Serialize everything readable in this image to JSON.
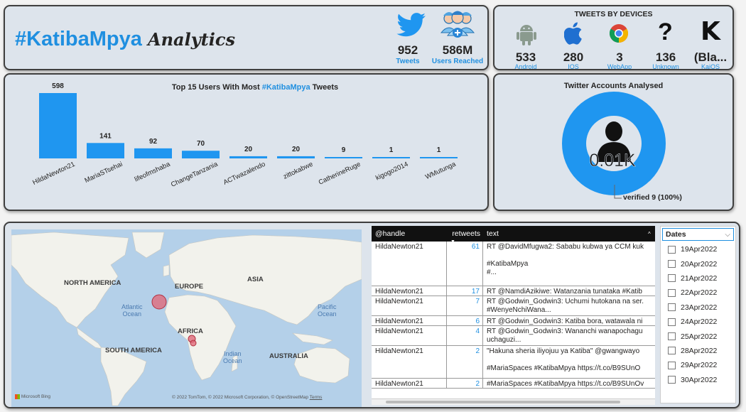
{
  "header": {
    "title_hashtag": "#KatibaMpya",
    "title_word": "Analytics",
    "tweets_value": "952",
    "tweets_label": "Tweets",
    "reached_value": "586M",
    "reached_label": "Users Reached"
  },
  "devices": {
    "title": "TWEETS BY DEVICES",
    "items": [
      {
        "value": "533",
        "label": "Android",
        "icon": "android-icon"
      },
      {
        "value": "280",
        "label": "IOS",
        "icon": "apple-icon"
      },
      {
        "value": "3",
        "label": "WebApp",
        "icon": "chrome-icon"
      },
      {
        "value": "136",
        "label": "Unknown",
        "icon": "question-icon"
      },
      {
        "value": "(Bla...",
        "label": "KaiOS",
        "icon": "kaios-icon"
      }
    ]
  },
  "chart_data": {
    "type": "bar",
    "title_prefix": "Top 15 Users With Most",
    "title_hashtag": "#KatibaMpya",
    "title_suffix": "Tweets",
    "categories": [
      "HildaNewton21",
      "MariaSTsehai",
      "lifeofmshaba",
      "ChangeTanzania",
      "ACTwazalendo",
      "zittokabwe",
      "CatherineRuge",
      "kigogo2014",
      "WMutunga"
    ],
    "values": [
      598,
      141,
      92,
      70,
      20,
      20,
      9,
      1,
      1
    ],
    "color": "#1f96f0"
  },
  "accounts": {
    "title": "Twitter Accounts Analysed",
    "value": "0.01K",
    "verified_label": "verified 9 (100%)",
    "verified_fraction": 1.0,
    "color": "#1f96f0"
  },
  "map": {
    "labels": {
      "north_america": "NORTH AMERICA",
      "europe": "EUROPE",
      "asia": "ASIA",
      "africa": "AFRICA",
      "south_america": "SOUTH AMERICA",
      "australia": "AUSTRALIA",
      "atlantic": "Atlantic\nOcean",
      "pacific": "Pacific\nOcean",
      "indian": "Indian\nOcean"
    },
    "bing": "Microsoft Bing",
    "copyright": "© 2022 TomTom, © 2022 Microsoft Corporation, © OpenStreetMap",
    "terms": "Terms"
  },
  "table": {
    "headers": {
      "handle": "@handle",
      "retweets": "retweets",
      "text": "text"
    },
    "rows": [
      {
        "handle": "HildaNewton21",
        "retweets": "61",
        "text": "RT @DavidMfugwa2: Sababu kubwa ya CCM kuk\n\n#KatibaMpya\n#..."
      },
      {
        "handle": "HildaNewton21",
        "retweets": "17",
        "text": "RT @NamdiAzikiwe: Watanzania tunataka #Katib"
      },
      {
        "handle": "HildaNewton21",
        "retweets": "7",
        "text": "RT @Godwin_Godwin3: Uchumi hutokana na ser.\n#WenyeNchiWana..."
      },
      {
        "handle": "HildaNewton21",
        "retweets": "6",
        "text": "RT @Godwin_Godwin3: Katiba bora, watawala ni"
      },
      {
        "handle": "HildaNewton21",
        "retweets": "4",
        "text": "RT @Godwin_Godwin3: Wananchi wanapochagu\nuchaguzi..."
      },
      {
        "handle": "HildaNewton21",
        "retweets": "2",
        "text": "\"Hakuna sheria iliyojuu ya Katiba\" @gwangwayo\n\n#MariaSpaces #KatibaMpya https://t.co/B9SUnO"
      },
      {
        "handle": "HildaNewton21",
        "retweets": "2",
        "text": "#MariaSpaces #KatibaMpya https://t.co/B9SUnOv"
      }
    ]
  },
  "slicer": {
    "title": "Dates",
    "items": [
      "19Apr2022",
      "20Apr2022",
      "21Apr2022",
      "22Apr2022",
      "23Apr2022",
      "24Apr2022",
      "25Apr2022",
      "28Apr2022",
      "29Apr2022",
      "30Apr2022"
    ]
  }
}
